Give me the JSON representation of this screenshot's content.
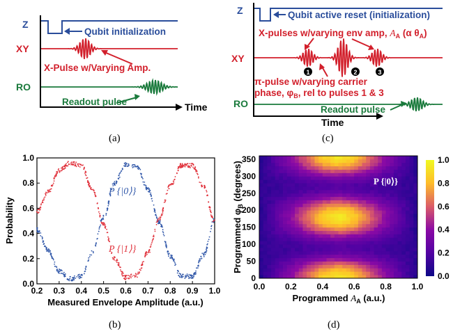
{
  "panel_a": {
    "caption": "(a)",
    "rows": {
      "z": "Z",
      "xy": "XY",
      "ro": "RO"
    },
    "labels": {
      "init": "Qubit initialization",
      "xpulse": "X-Pulse w/Varying Amp.",
      "readout": "Readout pulse"
    },
    "time": "Time",
    "colors": {
      "z": "#2a4d9b",
      "xy": "#d21f2b",
      "ro": "#1a7a3c"
    }
  },
  "panel_c": {
    "caption": "(c)",
    "rows": {
      "z": "Z",
      "xy": "XY",
      "ro": "RO"
    },
    "labels": {
      "reset": "Qubit active reset (initialization)",
      "xpulses_line": "X-pulses w/varying env amp, A_A (α θ_A)",
      "xpulses_main": "X-pulses w/varying env amp, ",
      "xpulses_var": "A",
      "xpulses_sub": "A",
      "xpulses_open": " (α θ",
      "xpulses_close": ")",
      "pi_line1": "π-pulse w/varying carrier",
      "pi_line2": "phase, φ_B, rel to pulses 1 & 3",
      "pi_line2a": "phase, φ",
      "pi_line2b": "B",
      "pi_line2c": ", rel to pulses 1 & 3",
      "readout": "Readout pulse"
    },
    "markers": [
      "1",
      "2",
      "3"
    ],
    "time": "Time"
  },
  "panel_b": {
    "caption": "(b)",
    "legend": {
      "p0": "P {|0⟩}",
      "p1": "P {|1⟩}"
    }
  },
  "panel_d": {
    "caption": "(d)",
    "annotation": "P {|0⟩}",
    "xlabel_pre": "Programmed ",
    "xlabel_var": "A",
    "xlabel_sub": "A",
    "xlabel_post": " (a.u.)",
    "ylabel_pre": "Programmed φ",
    "ylabel_sub": "B",
    "ylabel_post": " (degrees)"
  },
  "chart_data": [
    {
      "type": "scatter",
      "xlabel": "Measured Envelope Amplitude (a.u.)",
      "ylabel": "Probability",
      "xlim": [
        0.2,
        1.0
      ],
      "ylim": [
        0.0,
        1.0
      ],
      "xticks": [
        "0.2",
        "0.3",
        "0.4",
        "0.5",
        "0.6",
        "0.7",
        "0.8",
        "0.9",
        "1.0"
      ],
      "yticks": [
        "0.0",
        "0.2",
        "0.4",
        "0.6",
        "0.8",
        "1.0"
      ],
      "series": [
        {
          "name": "P {|0⟩}",
          "color": "#2f56a8",
          "x": [
            0.2,
            0.25,
            0.3,
            0.35,
            0.4,
            0.45,
            0.5,
            0.55,
            0.6,
            0.65,
            0.7,
            0.75,
            0.8,
            0.85,
            0.9,
            0.95,
            1.0
          ],
          "y": [
            0.43,
            0.27,
            0.1,
            0.04,
            0.06,
            0.25,
            0.53,
            0.8,
            0.95,
            0.93,
            0.75,
            0.49,
            0.22,
            0.06,
            0.06,
            0.23,
            0.51
          ]
        },
        {
          "name": "P {|1⟩}",
          "color": "#e0303a",
          "x": [
            0.2,
            0.25,
            0.3,
            0.35,
            0.4,
            0.45,
            0.5,
            0.55,
            0.6,
            0.65,
            0.7,
            0.75,
            0.8,
            0.85,
            0.9,
            0.95,
            1.0
          ],
          "y": [
            0.57,
            0.73,
            0.9,
            0.96,
            0.94,
            0.75,
            0.47,
            0.2,
            0.05,
            0.07,
            0.25,
            0.51,
            0.78,
            0.94,
            0.94,
            0.77,
            0.49
          ]
        }
      ]
    },
    {
      "type": "heatmap",
      "xlim": [
        0.0,
        1.0
      ],
      "ylim": [
        0,
        360
      ],
      "xticks": [
        "0.0",
        "0.2",
        "0.4",
        "0.6",
        "0.8",
        "1.0"
      ],
      "yticks": [
        "0",
        "50",
        "100",
        "150",
        "200",
        "250",
        "300",
        "350"
      ],
      "colorbar": {
        "range": [
          0.0,
          1.0
        ],
        "ticks": [
          "0.0",
          "0.2",
          "0.4",
          "0.6",
          "0.8",
          "1.0"
        ],
        "colormap": "plasma"
      },
      "x": [
        0.0,
        0.2,
        0.4,
        0.5,
        0.6,
        0.8,
        1.0
      ],
      "y": [
        0,
        90,
        180,
        270,
        360
      ],
      "z": [
        [
          0.05,
          0.4,
          0.85,
          0.95,
          0.85,
          0.4,
          0.05
        ],
        [
          0.1,
          0.15,
          0.2,
          0.22,
          0.2,
          0.15,
          0.1
        ],
        [
          0.05,
          0.4,
          0.85,
          0.95,
          0.85,
          0.4,
          0.05
        ],
        [
          0.1,
          0.15,
          0.2,
          0.22,
          0.2,
          0.15,
          0.1
        ],
        [
          0.05,
          0.4,
          0.85,
          0.95,
          0.85,
          0.4,
          0.05
        ]
      ]
    }
  ]
}
